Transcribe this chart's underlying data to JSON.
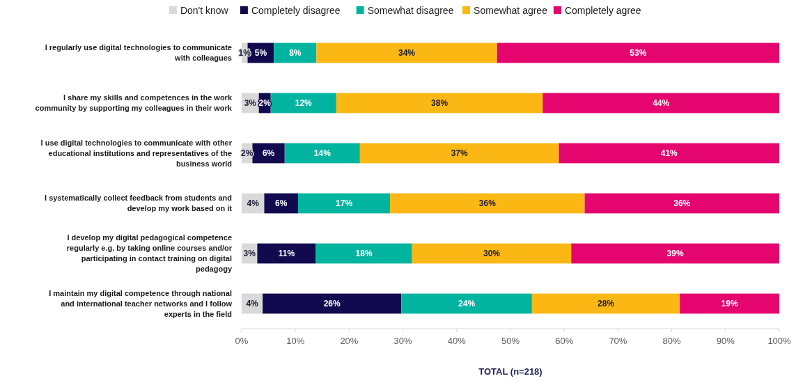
{
  "chart_data": {
    "type": "bar",
    "orientation": "horizontal",
    "stacked": true,
    "xlabel": "TOTAL (n=218)",
    "categories": [
      "I regularly use digital technologies to communicate with colleagues",
      "I share my skills and competences in the work community by supporting my colleagues in their work",
      "I use digital technologies to communicate with other educational institutions and representatives of the business world",
      "I systematically collect feedback from students and develop my work based on it",
      "I develop my digital pedagogical competence regularly e.g. by taking online courses and/or participating in contact training on digital pedagogy",
      "I maintain my digital competence  through national and international teacher networks and I follow experts in the field"
    ],
    "series": [
      {
        "name": "Don't know",
        "color": "#d9d9d9",
        "values": [
          1.1,
          3.2,
          2,
          4.2,
          2.9,
          3.9
        ],
        "value_labels": [
          "1%",
          "3%",
          "2%",
          "4%",
          "3%",
          "4%"
        ]
      },
      {
        "name": "Completely disagree",
        "color": "#120a4f",
        "values": [
          4.9,
          2.2,
          6,
          6.3,
          10.9,
          25.8
        ],
        "value_labels": [
          "5%",
          "2%",
          "6%",
          "6%",
          "11%",
          "26%"
        ]
      },
      {
        "name": "Somewhat disagree",
        "color": "#00b4a0",
        "values": [
          7.9,
          12.2,
          14,
          17.1,
          17.9,
          24.3
        ],
        "value_labels": [
          "8%",
          "12%",
          "14%",
          "17%",
          "18%",
          "24%"
        ]
      },
      {
        "name": "Somewhat agree",
        "color": "#fbb814",
        "values": [
          33.6,
          38.4,
          37,
          36.2,
          29.6,
          27.5
        ],
        "value_labels": [
          "34%",
          "38%",
          "37%",
          "36%",
          "30%",
          "28%"
        ]
      },
      {
        "name": "Completely agree",
        "color": "#e4056f",
        "values": [
          52.5,
          44,
          41,
          36.2,
          38.7,
          18.5
        ],
        "value_labels": [
          "53%",
          "44%",
          "41%",
          "36%",
          "39%",
          "19%"
        ]
      }
    ],
    "xlim": [
      0,
      100
    ],
    "xticks": [
      {
        "value": 0,
        "label": "0%"
      },
      {
        "value": 10,
        "label": "10%"
      },
      {
        "value": 20,
        "label": "20%"
      },
      {
        "value": 30,
        "label": "30%"
      },
      {
        "value": 40,
        "label": "40%"
      },
      {
        "value": 50,
        "label": "50%"
      },
      {
        "value": 60,
        "label": "60%"
      },
      {
        "value": 70,
        "label": "70%"
      },
      {
        "value": 80,
        "label": "80%"
      },
      {
        "value": 90,
        "label": "90%"
      },
      {
        "value": 100,
        "label": "100%"
      }
    ],
    "legend": "top",
    "grid": false
  }
}
